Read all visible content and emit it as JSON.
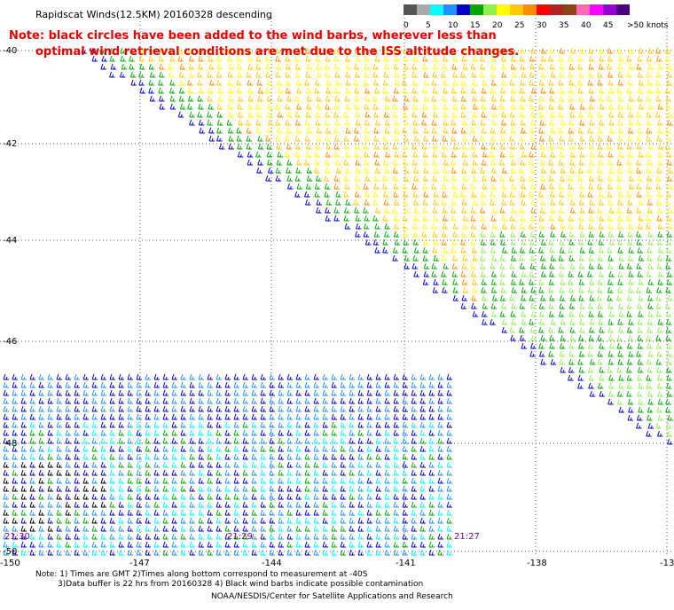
{
  "title": "Rapidscat Winds(12.5KM) 20160328 descending",
  "note_line1": "Note: black circles have been added to the wind barbs, wherever less than",
  "note_line2": "optimal wind retrieval conditions are met due to the ISS altitude changes.",
  "legend": {
    "colors": [
      "#555555",
      "#a9a9a9",
      "#00ffff",
      "#1e90ff",
      "#0000cd",
      "#00a800",
      "#90ee50",
      "#ffff00",
      "#ffc800",
      "#ff8c00",
      "#ff0000",
      "#b22222",
      "#8b4513",
      "#ff69b4",
      "#ff00ff",
      "#9400d3",
      "#4b0082"
    ],
    "labels": [
      "0",
      "5",
      "10",
      "15",
      "20",
      "25",
      "30",
      "35",
      "40",
      "45",
      ">50 knots"
    ]
  },
  "lat_labels": [
    "-40",
    "-42",
    "-44",
    "-46",
    "-48",
    "-50"
  ],
  "lon_labels": [
    "-150",
    "-147",
    "-144",
    "-141",
    "-138",
    "-13"
  ],
  "time_labels": [
    "21:30",
    "21:29",
    "21:27"
  ],
  "footer": {
    "line1": "Note: 1) Times are GMT 2)Times along bottom correspond to measurement at -40S",
    "line2": "3)Data buffer is 22 hrs from 20160328 4) Black wind barbs indicate possible contamination",
    "line3": "NOAA/NESDIS/Center for Satellite Applications and Research"
  }
}
